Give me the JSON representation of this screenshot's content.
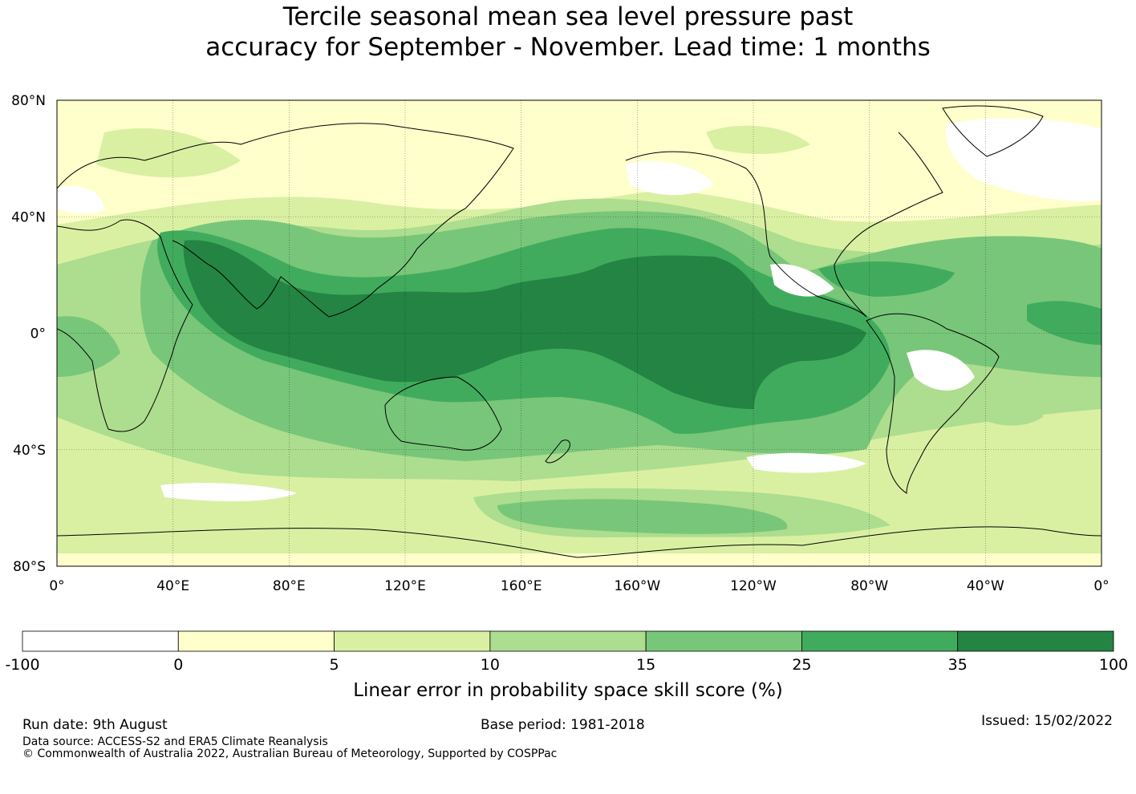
{
  "title": {
    "line1": "Tercile seasonal mean sea level pressure past",
    "line2": "accuracy for September - November. Lead time: 1 months"
  },
  "map": {
    "lat_labels": [
      "80°N",
      "40°N",
      "0°",
      "40°S",
      "80°S"
    ],
    "lon_labels": [
      "0°",
      "40°E",
      "80°E",
      "120°E",
      "160°E",
      "160°W",
      "120°W",
      "80°W",
      "40°W",
      "0°"
    ]
  },
  "colorbar": {
    "boundaries": [
      "-100",
      "0",
      "5",
      "10",
      "15",
      "25",
      "35",
      "100"
    ],
    "colors": [
      "#ffffff",
      "#ffffcc",
      "#d9f0a3",
      "#addd8e",
      "#78c679",
      "#41ab5d",
      "#238443"
    ],
    "label": "Linear error in probability space skill score (%)"
  },
  "footer": {
    "run_date": "Run date: 9th August",
    "base_period": "Base period: 1981-2018",
    "issued": "Issued: 15/02/2022",
    "data_source": "Data source: ACCESS-S2 and ERA5 Climate Reanalysis",
    "copyright": "© Commonwealth of Australia 2022, Australian Bureau of Meteorology, Supported by COSPPac"
  }
}
